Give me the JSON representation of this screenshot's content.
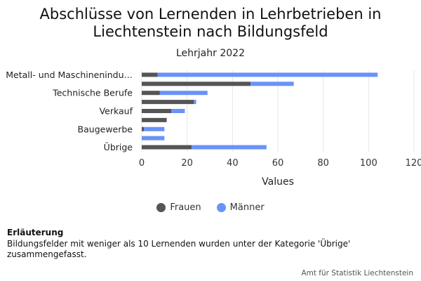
{
  "chart_data": {
    "type": "bar",
    "orientation": "horizontal",
    "stacked": true,
    "title": "Abschlüsse von Lernenden in Lehrbetrieben in Liechtenstein nach Bildungsfeld",
    "subtitle": "Lehrjahr 2022",
    "xlabel": "Values",
    "ylabel": "",
    "xlim": [
      0,
      120
    ],
    "xticks": [
      "0",
      "20",
      "40",
      "60",
      "80",
      "100",
      "120"
    ],
    "grid": true,
    "legend_position": "bottom",
    "categories": [
      "Metall- und Maschinenindu…",
      "",
      "Technische Berufe",
      "",
      "Verkauf",
      "",
      "Baugewerbe",
      "",
      "Übrige"
    ],
    "series": [
      {
        "name": "Frauen",
        "color": "#555555",
        "values": [
          7,
          48,
          8,
          23,
          13,
          11,
          1,
          0,
          22
        ]
      },
      {
        "name": "Männer",
        "color": "#6a93f8",
        "values": [
          97,
          19,
          21,
          1,
          6,
          0,
          9,
          10,
          33
        ]
      }
    ]
  },
  "footnote": {
    "heading": "Erläuterung",
    "text": "Bildungsfelder mit weniger als 10 Lernenden wurden unter der Kategorie 'Übrige' zusammengefasst."
  },
  "source": "Amt für Statistik Liechtenstein"
}
